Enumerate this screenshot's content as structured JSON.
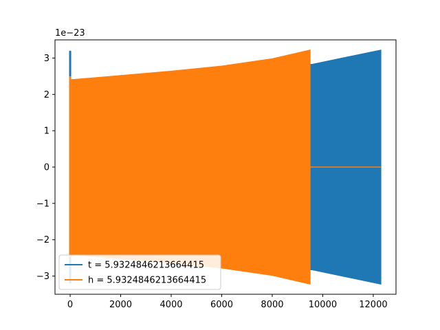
{
  "chart_data": {
    "type": "line",
    "title": "",
    "xlabel": "",
    "ylabel": "",
    "y_scale_label": "1e−23",
    "xlim": [
      -600,
      12900
    ],
    "ylim": [
      -3.5,
      3.5
    ],
    "y_multiplier": 1e-23,
    "xticks": [
      0,
      2000,
      4000,
      6000,
      8000,
      10000,
      12000
    ],
    "xtick_labels": [
      "0",
      "2000",
      "4000",
      "6000",
      "8000",
      "10000",
      "12000"
    ],
    "yticks": [
      -3,
      -2,
      -1,
      0,
      1,
      2,
      3
    ],
    "ytick_labels": [
      "−3",
      "−2",
      "−1",
      "0",
      "1",
      "2",
      "3"
    ],
    "grid": false,
    "legend_position": "lower-left",
    "series": [
      {
        "name": "t = 5.9324846213664415",
        "color": "#1f77b4",
        "description_kind": "oscillation-envelope",
        "envelope": {
          "x": [
            0,
            9600,
            12300
          ],
          "upper": [
            2.4,
            2.83,
            3.22
          ],
          "lower": [
            -2.4,
            -2.83,
            -3.22
          ]
        },
        "spikes": [
          {
            "x": 0,
            "y_min": -3.2,
            "y_max": 3.2
          }
        ],
        "x_end": 12300
      },
      {
        "name": "h = 5.9324846213664415",
        "color": "#ff7f0e",
        "description_kind": "oscillation-envelope",
        "envelope": {
          "x": [
            0,
            2000,
            4000,
            6000,
            8000,
            9500
          ],
          "upper": [
            2.4,
            2.52,
            2.64,
            2.78,
            2.98,
            3.22
          ],
          "lower": [
            -2.4,
            -2.52,
            -2.64,
            -2.78,
            -2.98,
            -3.22
          ]
        },
        "spikes": [
          {
            "x": 0,
            "y_min": -2.5,
            "y_max": 2.5
          }
        ],
        "x_end": 9500,
        "tail": {
          "x": [
            9500,
            12300
          ],
          "y": [
            0,
            0
          ]
        }
      }
    ]
  }
}
